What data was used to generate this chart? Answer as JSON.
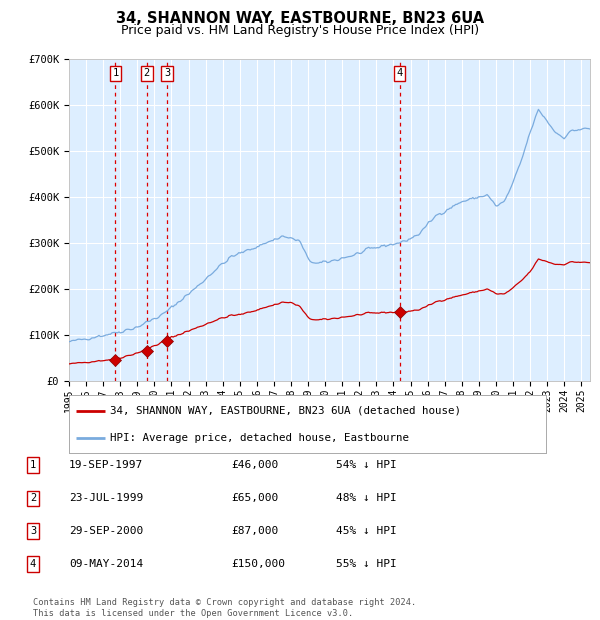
{
  "title": "34, SHANNON WAY, EASTBOURNE, BN23 6UA",
  "subtitle": "Price paid vs. HM Land Registry's House Price Index (HPI)",
  "title_fontsize": 10.5,
  "subtitle_fontsize": 9,
  "bg_color": "#ddeeff",
  "hpi_color": "#7aabde",
  "price_color": "#cc0000",
  "ylim": [
    0,
    700000
  ],
  "yticks": [
    0,
    100000,
    200000,
    300000,
    400000,
    500000,
    600000,
    700000
  ],
  "ytick_labels": [
    "£0",
    "£100K",
    "£200K",
    "£300K",
    "£400K",
    "£500K",
    "£600K",
    "£700K"
  ],
  "transactions": [
    {
      "label": "1",
      "date": "19-SEP-1997",
      "price": 46000,
      "year": 1997.72,
      "hpi_pct": "54% ↓ HPI"
    },
    {
      "label": "2",
      "date": "23-JUL-1999",
      "price": 65000,
      "year": 1999.56,
      "hpi_pct": "48% ↓ HPI"
    },
    {
      "label": "3",
      "date": "29-SEP-2000",
      "price": 87000,
      "year": 2000.75,
      "hpi_pct": "45% ↓ HPI"
    },
    {
      "label": "4",
      "date": "09-MAY-2014",
      "price": 150000,
      "year": 2014.36,
      "hpi_pct": "55% ↓ HPI"
    }
  ],
  "legend_entries": [
    "34, SHANNON WAY, EASTBOURNE, BN23 6UA (detached house)",
    "HPI: Average price, detached house, Eastbourne"
  ],
  "footer_text": "Contains HM Land Registry data © Crown copyright and database right 2024.\nThis data is licensed under the Open Government Licence v3.0.",
  "xmin": 1995.0,
  "xmax": 2025.5,
  "xticks": [
    1995,
    1996,
    1997,
    1998,
    1999,
    2000,
    2001,
    2002,
    2003,
    2004,
    2005,
    2006,
    2007,
    2008,
    2009,
    2010,
    2011,
    2012,
    2013,
    2014,
    2015,
    2016,
    2017,
    2018,
    2019,
    2020,
    2021,
    2022,
    2023,
    2024,
    2025
  ]
}
